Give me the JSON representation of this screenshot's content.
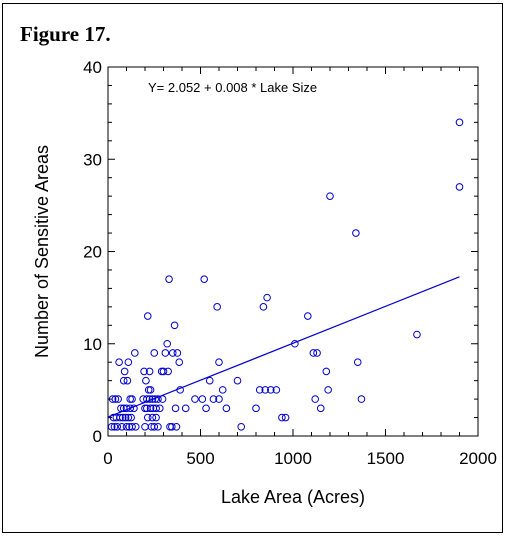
{
  "figure": {
    "label": "Figure 17."
  },
  "colors": {
    "points": "#0000cc",
    "fit_line": "#0000cc",
    "axes": "#000000"
  },
  "chart_data": {
    "type": "scatter",
    "title": "",
    "xlabel": "Lake Area (Acres)",
    "ylabel": "Number of Sensitive Areas",
    "xlim": [
      0,
      2000
    ],
    "ylim": [
      0,
      40
    ],
    "x_ticks": [
      0,
      500,
      1000,
      1500,
      2000
    ],
    "y_ticks": [
      0,
      10,
      20,
      30,
      40
    ],
    "x_tick_labels": [
      "0",
      "500",
      "1000",
      "1500",
      "2000"
    ],
    "y_tick_labels": [
      "0",
      "10",
      "20",
      "30",
      "40"
    ],
    "grid": false,
    "annotation": "Y= 2.052 + 0.008 * Lake Size",
    "regression": {
      "intercept": 2.052,
      "slope": 0.008,
      "x_range": [
        0,
        1900
      ]
    },
    "series": [
      {
        "points": [
          [
            20,
            1
          ],
          [
            25,
            4
          ],
          [
            30,
            2
          ],
          [
            35,
            1
          ],
          [
            40,
            4
          ],
          [
            45,
            2
          ],
          [
            50,
            1
          ],
          [
            55,
            4
          ],
          [
            60,
            8
          ],
          [
            65,
            2
          ],
          [
            70,
            3
          ],
          [
            75,
            1
          ],
          [
            80,
            2
          ],
          [
            85,
            6
          ],
          [
            85,
            3
          ],
          [
            90,
            7
          ],
          [
            95,
            2
          ],
          [
            100,
            1
          ],
          [
            100,
            3
          ],
          [
            105,
            6
          ],
          [
            110,
            2
          ],
          [
            110,
            8
          ],
          [
            115,
            1
          ],
          [
            120,
            3
          ],
          [
            120,
            4
          ],
          [
            125,
            2
          ],
          [
            130,
            1
          ],
          [
            130,
            4
          ],
          [
            140,
            3
          ],
          [
            145,
            9
          ],
          [
            150,
            1
          ],
          [
            190,
            4
          ],
          [
            195,
            7
          ],
          [
            200,
            3
          ],
          [
            200,
            1
          ],
          [
            205,
            6
          ],
          [
            210,
            4
          ],
          [
            210,
            3
          ],
          [
            215,
            2
          ],
          [
            215,
            13
          ],
          [
            220,
            5
          ],
          [
            225,
            4
          ],
          [
            225,
            7
          ],
          [
            230,
            3
          ],
          [
            230,
            5
          ],
          [
            235,
            1
          ],
          [
            240,
            4
          ],
          [
            240,
            2
          ],
          [
            245,
            3
          ],
          [
            250,
            9
          ],
          [
            250,
            1
          ],
          [
            255,
            4
          ],
          [
            260,
            2
          ],
          [
            260,
            3
          ],
          [
            270,
            1
          ],
          [
            270,
            4
          ],
          [
            280,
            3
          ],
          [
            290,
            7
          ],
          [
            295,
            4
          ],
          [
            300,
            7
          ],
          [
            310,
            9
          ],
          [
            320,
            10
          ],
          [
            325,
            7
          ],
          [
            330,
            17
          ],
          [
            335,
            1
          ],
          [
            345,
            1
          ],
          [
            350,
            9
          ],
          [
            360,
            12
          ],
          [
            365,
            3
          ],
          [
            370,
            1
          ],
          [
            375,
            9
          ],
          [
            385,
            8
          ],
          [
            390,
            5
          ],
          [
            420,
            3
          ],
          [
            470,
            4
          ],
          [
            510,
            4
          ],
          [
            520,
            17
          ],
          [
            530,
            3
          ],
          [
            550,
            6
          ],
          [
            570,
            4
          ],
          [
            590,
            14
          ],
          [
            600,
            8
          ],
          [
            600,
            4
          ],
          [
            620,
            5
          ],
          [
            640,
            3
          ],
          [
            700,
            6
          ],
          [
            720,
            1
          ],
          [
            800,
            3
          ],
          [
            820,
            5
          ],
          [
            840,
            14
          ],
          [
            850,
            5
          ],
          [
            860,
            15
          ],
          [
            880,
            5
          ],
          [
            910,
            5
          ],
          [
            940,
            2
          ],
          [
            960,
            2
          ],
          [
            1010,
            10
          ],
          [
            1080,
            13
          ],
          [
            1110,
            9
          ],
          [
            1120,
            4
          ],
          [
            1130,
            9
          ],
          [
            1150,
            3
          ],
          [
            1180,
            7
          ],
          [
            1190,
            5
          ],
          [
            1200,
            26
          ],
          [
            1340,
            22
          ],
          [
            1350,
            8
          ],
          [
            1370,
            4
          ],
          [
            1670,
            11
          ],
          [
            1900,
            27
          ],
          [
            1900,
            34
          ]
        ]
      }
    ]
  }
}
